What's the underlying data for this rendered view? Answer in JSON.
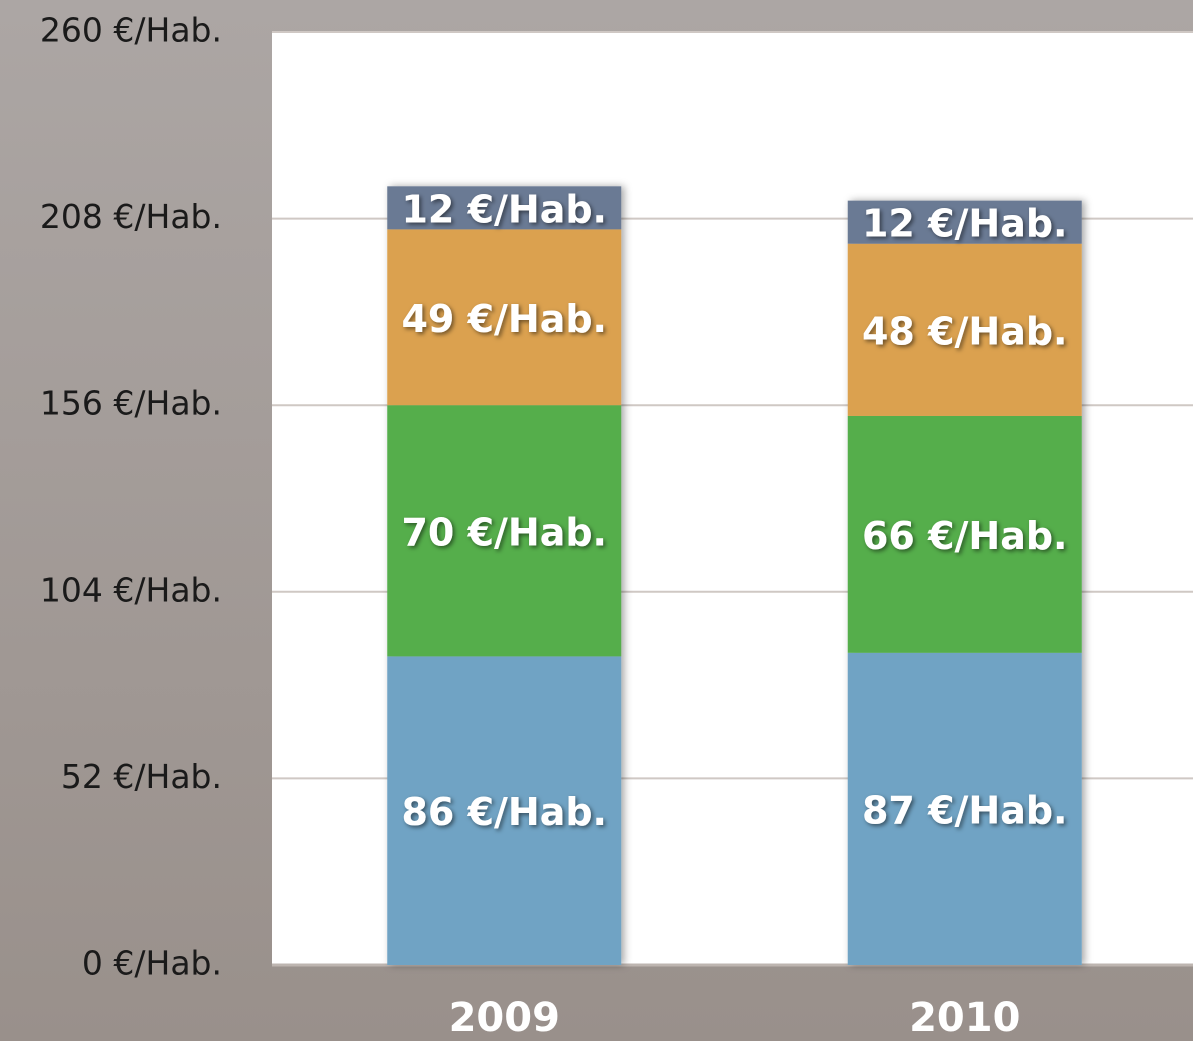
{
  "chart_data": {
    "type": "stacked_bar",
    "categories": [
      "2009",
      "2010"
    ],
    "series": [
      {
        "color": "#6fa3c4",
        "values": [
          86,
          87
        ],
        "value_labels": [
          "86 €/Hab.",
          "87 €/Hab."
        ]
      },
      {
        "color": "#55ae4c",
        "values": [
          70,
          66
        ],
        "value_labels": [
          "70 €/Hab.",
          "66 €/Hab."
        ]
      },
      {
        "color": "#dba150",
        "values": [
          49,
          48
        ],
        "value_labels": [
          "49 €/Hab.",
          "48 €/Hab."
        ]
      },
      {
        "color": "#6b7a94",
        "values": [
          12,
          12
        ],
        "value_labels": [
          "12 €/Hab.",
          "12 €/Hab."
        ]
      }
    ],
    "ylim": [
      0,
      260
    ],
    "yticks": [
      {
        "value": 0,
        "label": "0 €/Hab."
      },
      {
        "value": 52,
        "label": "52 €/Hab."
      },
      {
        "value": 104,
        "label": "104 €/Hab."
      },
      {
        "value": 156,
        "label": "156 €/Hab."
      },
      {
        "value": 208,
        "label": "208 €/Hab."
      },
      {
        "value": 260,
        "label": "260 €/Hab."
      }
    ],
    "grid": true
  }
}
